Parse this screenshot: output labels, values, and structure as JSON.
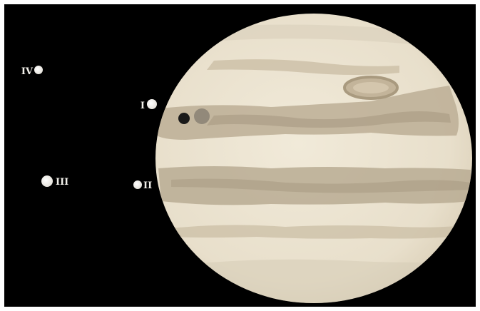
{
  "colors": {
    "sky": "#000000",
    "frame": "#ffffff",
    "planet_base": "#ece4d2",
    "belt": "#b8ab93",
    "belt_dark": "#a69880",
    "spot": "#c3b49a",
    "moon": "#fbfbf8",
    "moon_shadow": "#1a1a1a",
    "moon_transit": "#8d8475"
  },
  "moons": [
    {
      "label": "IV"
    },
    {
      "label": "I"
    },
    {
      "label": "III"
    },
    {
      "label": "II"
    }
  ]
}
